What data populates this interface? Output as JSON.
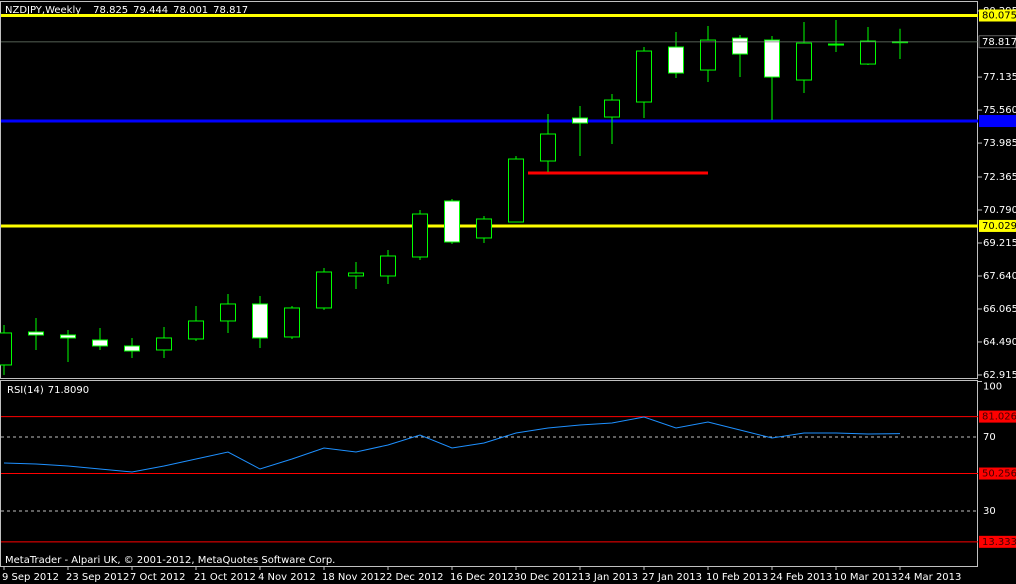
{
  "chart_data": [
    {
      "type": "candlestick",
      "title": "NZDJPY,Weekly",
      "categories": [
        "9 Sep 2012",
        null,
        "23 Sep 2012",
        null,
        "7 Oct 2012",
        null,
        "21 Oct 2012",
        null,
        "4 Nov 2012",
        null,
        "18 Nov 2012",
        null,
        "2 Dec 2012",
        null,
        "16 Dec 2012",
        null,
        "30 Dec 2012",
        null,
        "13 Jan 2013",
        null,
        "27 Jan 2013",
        null,
        "10 Feb 2013",
        null,
        "24 Feb 2013",
        null,
        "10 Mar 2013",
        null,
        "24 Mar 2013"
      ],
      "open": [
        63.392,
        64.967,
        64.824,
        64.585,
        64.299,
        64.108,
        64.633,
        65.492,
        66.304,
        64.729,
        66.113,
        67.64,
        67.64,
        68.547,
        71.22,
        69.454,
        70.217,
        73.129,
        75.181,
        75.229,
        75.945,
        78.57,
        77.472,
        78.999,
        78.904,
        76.995,
        78.713,
        77.758,
        78.825
      ],
      "high": [
        65.301,
        65.635,
        65.063,
        65.158,
        64.681,
        65.206,
        66.208,
        66.781,
        66.685,
        66.208,
        68.022,
        68.308,
        68.881,
        70.79,
        71.315,
        70.504,
        73.367,
        75.372,
        75.754,
        76.327,
        78.57,
        79.286,
        79.572,
        79.143,
        79.095,
        79.763,
        79.858,
        79.524,
        79.444
      ],
      "low": [
        62.915,
        64.108,
        63.535,
        64.108,
        63.726,
        63.726,
        64.538,
        64.92,
        64.204,
        64.633,
        66.017,
        67.02,
        67.258,
        68.404,
        69.167,
        69.215,
        70.217,
        72.604,
        73.367,
        73.94,
        75.181,
        77.09,
        76.899,
        77.138,
        75.086,
        76.374,
        78.331,
        77.711,
        78.001
      ],
      "close": [
        64.92,
        64.824,
        64.681,
        64.299,
        64.06,
        64.681,
        65.492,
        66.304,
        64.681,
        66.113,
        67.831,
        67.783,
        68.595,
        70.599,
        69.263,
        70.361,
        73.224,
        74.418,
        74.942,
        76.04,
        78.379,
        77.329,
        78.904,
        78.236,
        77.138,
        78.761,
        78.665,
        78.856,
        78.817
      ],
      "outline_color": "#00ff00",
      "bull_color": "#000000",
      "bear_color": "#ffffff",
      "ylim": [
        62.77,
        80.72
      ],
      "yticks": [
        80.295,
        77.135,
        {
          "value": 75.56,
          "label": "75.560"
        },
        73.985,
        72.365,
        {
          "value": 70.79,
          "label": "70.790"
        },
        69.215,
        {
          "value": 67.64,
          "label": "67.640"
        },
        66.065,
        {
          "value": 64.49,
          "label": "64.490"
        },
        62.915
      ],
      "hlines": [
        {
          "value": 80.075,
          "color": "#ffff00"
        },
        {
          "value": 70.029,
          "color": "#ffff00"
        },
        {
          "value": 75.038,
          "color": "#0000ff"
        }
      ],
      "segments": [
        {
          "value": 72.556,
          "color": "#ff0000",
          "x": [
            "30 Dec 2012",
            "10 Feb 2013"
          ]
        }
      ]
    },
    {
      "type": "line",
      "title": "RSI(14)",
      "current": {
        "value": 71.809,
        "label": "71.8090"
      },
      "series": [
        {
          "color": "#1e90ff",
          "values": [
            55.95,
            55.41,
            54.32,
            52.7,
            51.08,
            54.32,
            58.11,
            61.89,
            52.7,
            58.11,
            64.05,
            61.89,
            65.68,
            71.08,
            64.05,
            66.76,
            72.16,
            74.86,
            76.49,
            77.57,
            80.81,
            74.86,
            78.11,
            73.78,
            69.46,
            72.16,
            72.16,
            71.62,
            71.809
          ]
        }
      ],
      "ylim": [
        0,
        100
      ],
      "yticks": [
        100,
        70,
        30
      ],
      "levels": [
        {
          "value": 81.026,
          "color": "#ff0000"
        },
        {
          "value": 50.256,
          "color": "#ff0000"
        },
        {
          "value": 13.333,
          "color": "#ff0000"
        }
      ]
    }
  ],
  "footer": "MetaTrader - Alpari UK, © 2001-2012, MetaQuotes Software Corp."
}
